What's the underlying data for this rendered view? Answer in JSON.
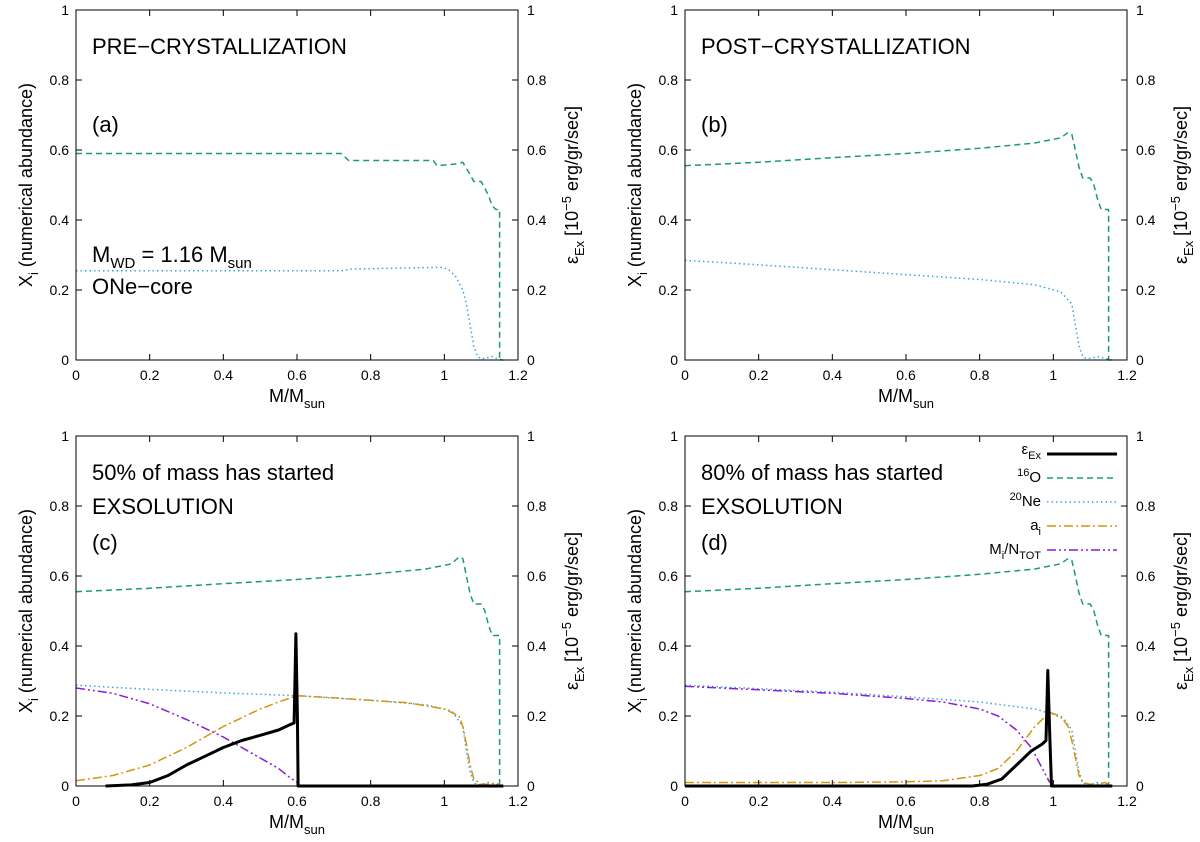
{
  "colors": {
    "ex": "#000000",
    "o16": "#1a9b77",
    "ne20": "#3ba4e0",
    "ai": "#d4960e",
    "mn": "#8a1bd6"
  },
  "common": {
    "xlabel_main": "M/M",
    "xlabel_sub": "sun",
    "ylabel_left_main": "X",
    "ylabel_left_sub": "i",
    "ylabel_left_rest": " (numerical abundance)",
    "ylabel_right_eps": "ε",
    "ylabel_right_sub": "Ex",
    "ylabel_right_rest1": " [10",
    "ylabel_right_sup": "−5",
    "ylabel_right_rest2": " erg/gr/sec]",
    "xticks": [
      "0",
      "0.2",
      "0.4",
      "0.6",
      "0.8",
      "1",
      "1.2"
    ],
    "xtick_values": [
      0,
      0.2,
      0.4,
      0.6,
      0.8,
      1.0,
      1.2
    ],
    "yticks": [
      "0",
      "0.2",
      "0.4",
      "0.6",
      "0.8",
      "1"
    ],
    "ytick_values": [
      0,
      0.2,
      0.4,
      0.6,
      0.8,
      1.0
    ]
  },
  "legend": {
    "ex_main": "ε",
    "ex_sub": "Ex",
    "o_sup": "16",
    "o_main": "O",
    "ne_sup": "20",
    "ne_main": "Ne",
    "ai_main": "a",
    "ai_sub": "i",
    "mn_main": "M",
    "mn_sub": "i",
    "mn_mid": "/N",
    "mn_sub2": "TOT"
  },
  "chart_data": [
    {
      "type": "line",
      "panel": "a",
      "annotations": {
        "line1": "PRE−CRYSTALLIZATION",
        "letter": "(a)",
        "mwd_main": "M",
        "mwd_sub": "WD",
        "mwd_mid": " = 1.16 M",
        "mwd_sub2": "sun",
        "core": "ONe−core"
      },
      "xlim": [
        0,
        1.2
      ],
      "ylim": [
        0,
        1
      ],
      "y2lim": [
        0,
        1
      ],
      "series": [
        {
          "name": "16O",
          "style": "dashed",
          "x": [
            0,
            0.72,
            0.74,
            0.97,
            0.98,
            1.03,
            1.05,
            1.07,
            1.08,
            1.1,
            1.11,
            1.12,
            1.13,
            1.14,
            1.15,
            1.15,
            1.16
          ],
          "y": [
            0.59,
            0.59,
            0.57,
            0.57,
            0.555,
            0.56,
            0.565,
            0.53,
            0.51,
            0.51,
            0.49,
            0.47,
            0.44,
            0.43,
            0.43,
            0.0,
            0.0
          ]
        },
        {
          "name": "20Ne",
          "style": "dotted",
          "x": [
            0,
            0.72,
            0.75,
            0.99,
            1.01,
            1.03,
            1.05,
            1.06,
            1.07,
            1.08,
            1.09,
            1.1,
            1.11,
            1.13,
            1.14,
            1.16
          ],
          "y": [
            0.255,
            0.255,
            0.26,
            0.265,
            0.26,
            0.24,
            0.2,
            0.16,
            0.1,
            0.04,
            0.01,
            0.003,
            0.005,
            0.01,
            0.005,
            0.0
          ]
        }
      ]
    },
    {
      "type": "line",
      "panel": "b",
      "annotations": {
        "line1": "POST−CRYSTALLIZATION",
        "letter": "(b)"
      },
      "xlim": [
        0,
        1.2
      ],
      "ylim": [
        0,
        1
      ],
      "y2lim": [
        0,
        1
      ],
      "series": [
        {
          "name": "16O",
          "style": "dashed",
          "x": [
            0,
            0.2,
            0.4,
            0.6,
            0.8,
            0.95,
            1.02,
            1.04,
            1.05,
            1.06,
            1.07,
            1.08,
            1.1,
            1.11,
            1.12,
            1.13,
            1.15,
            1.15,
            1.16
          ],
          "y": [
            0.555,
            0.565,
            0.578,
            0.59,
            0.605,
            0.62,
            0.635,
            0.65,
            0.645,
            0.6,
            0.55,
            0.52,
            0.52,
            0.5,
            0.46,
            0.43,
            0.43,
            0.0,
            0.0
          ]
        },
        {
          "name": "20Ne",
          "style": "dotted",
          "x": [
            0,
            0.2,
            0.4,
            0.6,
            0.8,
            0.95,
            1.02,
            1.05,
            1.06,
            1.07,
            1.08,
            1.09,
            1.1,
            1.12,
            1.14,
            1.16
          ],
          "y": [
            0.285,
            0.272,
            0.258,
            0.244,
            0.23,
            0.215,
            0.195,
            0.16,
            0.1,
            0.04,
            0.01,
            0.003,
            0.005,
            0.01,
            0.005,
            0.0
          ]
        }
      ]
    },
    {
      "type": "line",
      "panel": "c",
      "annotations": {
        "line1": "50% of mass has started",
        "line2": "EXSOLUTION",
        "letter": "(c)"
      },
      "xlim": [
        0,
        1.2
      ],
      "ylim": [
        0,
        1
      ],
      "y2lim": [
        0,
        1
      ],
      "series": [
        {
          "name": "16O",
          "style": "dashed",
          "x": [
            0,
            0.2,
            0.4,
            0.6,
            0.8,
            0.95,
            1.02,
            1.04,
            1.05,
            1.06,
            1.07,
            1.08,
            1.1,
            1.11,
            1.12,
            1.13,
            1.15,
            1.15,
            1.16
          ],
          "y": [
            0.555,
            0.565,
            0.578,
            0.59,
            0.605,
            0.62,
            0.635,
            0.655,
            0.65,
            0.6,
            0.55,
            0.52,
            0.52,
            0.5,
            0.46,
            0.43,
            0.43,
            0.0,
            0.0
          ]
        },
        {
          "name": "20Ne",
          "style": "dotted",
          "x": [
            0,
            0.2,
            0.4,
            0.6,
            0.8,
            0.95,
            1.02,
            1.05,
            1.06,
            1.07,
            1.08,
            1.09,
            1.1,
            1.12,
            1.14,
            1.16
          ],
          "y": [
            0.288,
            0.276,
            0.266,
            0.258,
            0.245,
            0.232,
            0.215,
            0.17,
            0.1,
            0.04,
            0.01,
            0.003,
            0.005,
            0.01,
            0.005,
            0.0
          ]
        },
        {
          "name": "a_i",
          "style": "dashdot",
          "x": [
            0,
            0.1,
            0.2,
            0.3,
            0.4,
            0.5,
            0.55,
            0.6,
            0.7,
            0.8,
            0.9,
            1.0,
            1.04,
            1.05,
            1.06,
            1.07,
            1.08,
            1.1,
            1.12,
            1.14,
            1.15
          ],
          "y": [
            0.015,
            0.03,
            0.06,
            0.11,
            0.17,
            0.22,
            0.24,
            0.258,
            0.252,
            0.245,
            0.238,
            0.22,
            0.2,
            0.17,
            0.12,
            0.06,
            0.02,
            0.005,
            0.005,
            0.008,
            0.005
          ]
        },
        {
          "name": "M_i/N_TOT",
          "style": "dashdotdot",
          "x": [
            0,
            0.1,
            0.2,
            0.3,
            0.4,
            0.5,
            0.55,
            0.58,
            0.6
          ],
          "y": [
            0.28,
            0.265,
            0.235,
            0.19,
            0.14,
            0.08,
            0.05,
            0.025,
            0.01
          ]
        },
        {
          "name": "εEx",
          "style": "solid",
          "x": [
            0.08,
            0.15,
            0.2,
            0.25,
            0.3,
            0.35,
            0.4,
            0.45,
            0.5,
            0.55,
            0.58,
            0.592,
            0.597,
            0.601,
            0.603,
            1.16
          ],
          "y": [
            0.0,
            0.003,
            0.01,
            0.03,
            0.06,
            0.085,
            0.11,
            0.13,
            0.145,
            0.16,
            0.175,
            0.18,
            0.435,
            0.2,
            0.0,
            0.0
          ]
        }
      ]
    },
    {
      "type": "line",
      "panel": "d",
      "annotations": {
        "line1": "80% of mass has started",
        "line2": "EXSOLUTION",
        "letter": "(d)"
      },
      "xlim": [
        0,
        1.2
      ],
      "ylim": [
        0,
        1
      ],
      "y2lim": [
        0,
        1
      ],
      "series": [
        {
          "name": "16O",
          "style": "dashed",
          "x": [
            0,
            0.2,
            0.4,
            0.6,
            0.8,
            0.95,
            1.02,
            1.04,
            1.05,
            1.06,
            1.07,
            1.08,
            1.1,
            1.11,
            1.12,
            1.13,
            1.15,
            1.15,
            1.16
          ],
          "y": [
            0.555,
            0.565,
            0.578,
            0.59,
            0.605,
            0.62,
            0.635,
            0.65,
            0.645,
            0.6,
            0.55,
            0.52,
            0.52,
            0.5,
            0.46,
            0.43,
            0.43,
            0.0,
            0.0
          ]
        },
        {
          "name": "20Ne",
          "style": "dotted",
          "x": [
            0,
            0.2,
            0.4,
            0.6,
            0.8,
            0.95,
            1.0,
            1.03,
            1.05,
            1.06,
            1.07,
            1.08,
            1.09,
            1.1,
            1.12,
            1.14,
            1.16
          ],
          "y": [
            0.288,
            0.278,
            0.268,
            0.255,
            0.24,
            0.22,
            0.205,
            0.19,
            0.16,
            0.1,
            0.04,
            0.01,
            0.003,
            0.005,
            0.01,
            0.005,
            0.0
          ]
        },
        {
          "name": "a_i",
          "style": "dashdot",
          "x": [
            0,
            0.2,
            0.4,
            0.6,
            0.7,
            0.8,
            0.85,
            0.9,
            0.95,
            0.99,
            1.02,
            1.04,
            1.05,
            1.06,
            1.07,
            1.08,
            1.1,
            1.12,
            1.14,
            1.15
          ],
          "y": [
            0.01,
            0.01,
            0.01,
            0.012,
            0.015,
            0.03,
            0.05,
            0.1,
            0.17,
            0.21,
            0.2,
            0.17,
            0.13,
            0.08,
            0.03,
            0.01,
            0.005,
            0.005,
            0.01,
            0.005
          ]
        },
        {
          "name": "M_i/N_TOT",
          "style": "dashdotdot",
          "x": [
            0,
            0.2,
            0.4,
            0.6,
            0.7,
            0.8,
            0.85,
            0.9,
            0.94,
            0.97,
            0.99
          ],
          "y": [
            0.285,
            0.275,
            0.265,
            0.25,
            0.24,
            0.22,
            0.2,
            0.16,
            0.11,
            0.05,
            0.01
          ]
        },
        {
          "name": "εEx",
          "style": "solid",
          "x": [
            0,
            0.78,
            0.82,
            0.86,
            0.9,
            0.94,
            0.97,
            0.98,
            0.985,
            0.99,
            0.995,
            1.16
          ],
          "y": [
            0.0,
            0.0,
            0.005,
            0.02,
            0.06,
            0.1,
            0.12,
            0.13,
            0.33,
            0.15,
            0.0,
            0.0
          ]
        }
      ]
    }
  ]
}
